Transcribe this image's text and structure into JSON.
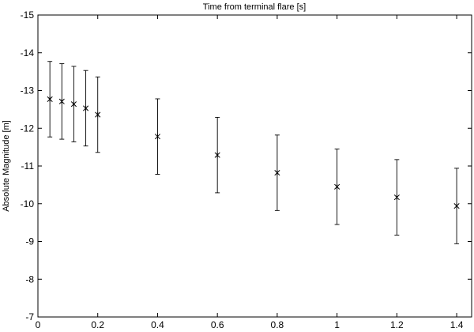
{
  "chart_data": {
    "type": "scatter",
    "title": "Time from terminal flare [s]",
    "xlabel": "",
    "ylabel": "Absolute Magnitude [m]",
    "xlim": [
      0,
      1.45
    ],
    "ylim": [
      -15,
      -7
    ],
    "y_inverted": true,
    "x_ticks": [
      0,
      0.2,
      0.4,
      0.6,
      0.8,
      1.0,
      1.2,
      1.4
    ],
    "x_tick_labels": [
      "0",
      "0.2",
      "0.4",
      "0.6",
      "0.8",
      "1",
      "1.2",
      "1.4"
    ],
    "y_ticks": [
      -15,
      -14,
      -13,
      -12,
      -11,
      -10,
      -9,
      -8,
      -7
    ],
    "y_tick_labels": [
      "-15",
      "-14",
      "-13",
      "-12",
      "-11",
      "-10",
      "-9",
      "-8",
      "-7"
    ],
    "marker": "asterisk",
    "grid": false,
    "points": [
      {
        "x": 0.04,
        "y": -12.77,
        "err": 1.0
      },
      {
        "x": 0.08,
        "y": -12.71,
        "err": 1.0
      },
      {
        "x": 0.12,
        "y": -12.64,
        "err": 1.0
      },
      {
        "x": 0.16,
        "y": -12.53,
        "err": 1.0
      },
      {
        "x": 0.2,
        "y": -12.36,
        "err": 1.0
      },
      {
        "x": 0.4,
        "y": -11.78,
        "err": 1.0
      },
      {
        "x": 0.6,
        "y": -11.29,
        "err": 1.0
      },
      {
        "x": 0.8,
        "y": -10.82,
        "err": 1.0
      },
      {
        "x": 1.0,
        "y": -10.45,
        "err": 1.0
      },
      {
        "x": 1.2,
        "y": -10.17,
        "err": 1.0
      },
      {
        "x": 1.4,
        "y": -9.94,
        "err": 1.0
      }
    ]
  }
}
